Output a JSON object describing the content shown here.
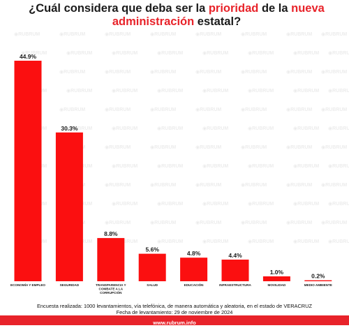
{
  "title": {
    "part1": "¿Cuál considera que deba ser la ",
    "highlight1": "prioridad",
    "part2": " de la ",
    "highlight2": "nueva administración",
    "part3": " estatal?"
  },
  "watermark_text": "RUBRUM",
  "footnote": {
    "line1": "Encuesta realizada: 1000 levantamientos, vía telefónica, de manera automática y aleatoria, en el estado de VERACRUZ",
    "line2": "Fecha de levantamiento: 29 de noviembre de 2024"
  },
  "footer": {
    "url": "www.rubrum.info"
  },
  "colors": {
    "bar": "#fb0f10",
    "accent": "#e8232a",
    "text": "#1a1a1a"
  },
  "chart_data": {
    "type": "bar",
    "title": "¿Cuál considera que deba ser la prioridad de la nueva administración estatal?",
    "categories": [
      [
        "ECONOMÍA Y EMPLEO"
      ],
      [
        "SEGURIDAD"
      ],
      [
        "TRANSPARENCIA Y",
        "COMBATE A LA",
        "CORRUPCIÓN"
      ],
      [
        "SALUD"
      ],
      [
        "EDUCACIÓN"
      ],
      [
        "INFRAESTRUCTURA"
      ],
      [
        "MOVILIDAD"
      ],
      [
        "MEDIO AMBIENTE"
      ]
    ],
    "values": [
      44.9,
      30.3,
      8.8,
      5.6,
      4.8,
      4.4,
      1.0,
      0.2
    ],
    "value_labels": [
      "44.9%",
      "30.3%",
      "8.8%",
      "5.6%",
      "4.8%",
      "4.4%",
      "1.0%",
      "0.2%"
    ],
    "ylim": [
      0,
      44.9
    ],
    "grid": false,
    "legend": "none"
  }
}
